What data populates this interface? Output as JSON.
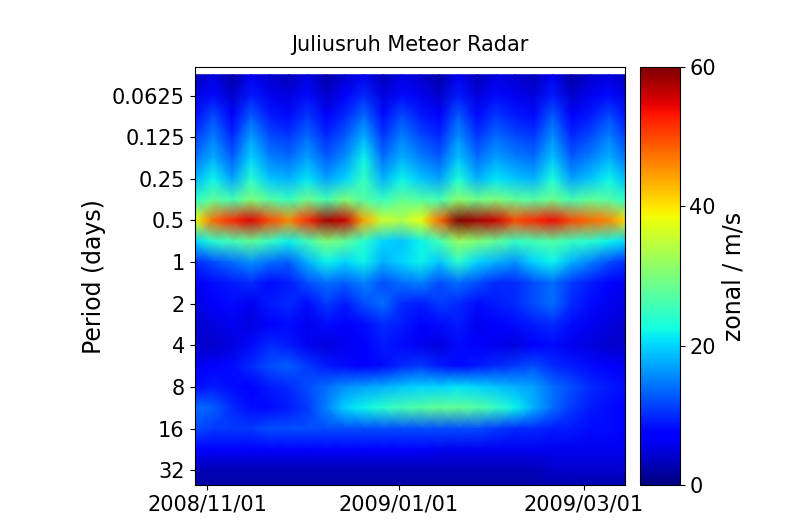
{
  "chart_data": {
    "type": "heatmap",
    "title": "Juliusruh Meteor Radar",
    "y_label": "Period (days)",
    "x": [
      "2008-10-28",
      "2008-11-03",
      "2008-11-09",
      "2008-11-15",
      "2008-11-21",
      "2008-11-27",
      "2008-12-03",
      "2008-12-09",
      "2008-12-15",
      "2008-12-21",
      "2008-12-27",
      "2009-01-02",
      "2009-01-08",
      "2009-01-14",
      "2009-01-20",
      "2009-01-26",
      "2009-02-01",
      "2009-02-07",
      "2009-02-13",
      "2009-02-19",
      "2009-02-25",
      "2009-03-03",
      "2009-03-09",
      "2009-03-15"
    ],
    "periods": [
      0.0442,
      0.0625,
      0.0884,
      0.125,
      0.177,
      0.25,
      0.354,
      0.5,
      0.707,
      1,
      1.41,
      2,
      2.83,
      4,
      5.66,
      8,
      11.3,
      16,
      22.6,
      32,
      45.3
    ],
    "cells": [
      [
        3,
        5,
        2,
        6,
        4,
        3,
        5,
        2,
        4,
        6,
        3,
        5,
        4,
        2,
        6,
        3,
        5,
        4,
        3,
        6,
        2,
        4,
        5,
        3
      ],
      [
        5,
        8,
        4,
        9,
        6,
        5,
        8,
        4,
        7,
        10,
        5,
        8,
        6,
        4,
        9,
        5,
        8,
        6,
        5,
        9,
        4,
        6,
        8,
        5
      ],
      [
        8,
        12,
        7,
        13,
        9,
        8,
        11,
        7,
        10,
        14,
        8,
        12,
        9,
        7,
        13,
        8,
        11,
        9,
        8,
        13,
        7,
        9,
        12,
        8
      ],
      [
        11,
        15,
        10,
        17,
        12,
        11,
        14,
        10,
        13,
        18,
        11,
        15,
        12,
        10,
        16,
        11,
        14,
        12,
        11,
        16,
        10,
        12,
        15,
        11
      ],
      [
        14,
        18,
        13,
        20,
        15,
        14,
        17,
        13,
        16,
        22,
        14,
        18,
        15,
        13,
        19,
        14,
        17,
        15,
        14,
        19,
        13,
        15,
        18,
        14
      ],
      [
        18,
        22,
        17,
        24,
        19,
        18,
        21,
        17,
        20,
        25,
        18,
        22,
        19,
        17,
        23,
        18,
        21,
        19,
        18,
        23,
        17,
        19,
        22,
        18
      ],
      [
        24,
        28,
        26,
        30,
        27,
        25,
        29,
        26,
        30,
        27,
        25,
        28,
        27,
        26,
        31,
        29,
        30,
        28,
        27,
        29,
        26,
        28,
        27,
        24
      ],
      [
        38,
        48,
        52,
        55,
        50,
        46,
        52,
        58,
        56,
        44,
        36,
        34,
        38,
        48,
        60,
        58,
        56,
        50,
        52,
        54,
        50,
        48,
        46,
        40
      ],
      [
        20,
        24,
        26,
        28,
        25,
        22,
        26,
        30,
        28,
        24,
        20,
        19,
        22,
        26,
        32,
        30,
        28,
        25,
        26,
        27,
        25,
        24,
        22,
        20
      ],
      [
        10,
        12,
        14,
        16,
        14,
        13,
        18,
        22,
        20,
        22,
        18,
        20,
        22,
        19,
        24,
        20,
        18,
        16,
        20,
        22,
        18,
        15,
        12,
        10
      ],
      [
        6,
        8,
        9,
        10,
        8,
        9,
        12,
        14,
        13,
        15,
        12,
        14,
        15,
        12,
        14,
        12,
        10,
        10,
        12,
        14,
        11,
        9,
        7,
        6
      ],
      [
        5,
        7,
        8,
        6,
        9,
        10,
        8,
        11,
        9,
        12,
        14,
        10,
        9,
        11,
        10,
        8,
        9,
        10,
        12,
        14,
        10,
        8,
        6,
        5
      ],
      [
        4,
        5,
        6,
        5,
        7,
        8,
        6,
        8,
        7,
        8,
        10,
        9,
        7,
        8,
        9,
        6,
        7,
        8,
        9,
        10,
        8,
        6,
        5,
        4
      ],
      [
        4,
        4,
        5,
        8,
        10,
        9,
        6,
        5,
        6,
        7,
        9,
        8,
        6,
        5,
        8,
        7,
        6,
        5,
        7,
        8,
        6,
        5,
        4,
        4
      ],
      [
        6,
        7,
        8,
        10,
        12,
        13,
        11,
        9,
        8,
        7,
        8,
        10,
        11,
        9,
        8,
        9,
        10,
        11,
        12,
        10,
        9,
        8,
        7,
        6
      ],
      [
        8,
        9,
        8,
        7,
        9,
        10,
        12,
        14,
        16,
        17,
        18,
        19,
        20,
        20,
        21,
        20,
        19,
        18,
        17,
        14,
        12,
        10,
        9,
        8
      ],
      [
        14,
        13,
        10,
        8,
        8,
        9,
        11,
        15,
        20,
        22,
        24,
        26,
        27,
        28,
        28,
        27,
        25,
        22,
        18,
        14,
        11,
        9,
        8,
        7
      ],
      [
        12,
        11,
        11,
        11,
        12,
        12,
        12,
        12,
        12,
        12,
        12,
        12,
        12,
        12,
        12,
        12,
        11,
        10,
        10,
        9,
        9,
        8,
        8,
        7
      ],
      [
        7,
        7,
        7,
        7,
        7,
        7,
        7,
        7,
        7,
        7,
        7,
        7,
        7,
        6,
        6,
        6,
        6,
        6,
        6,
        6,
        6,
        6,
        6,
        6
      ],
      [
        3,
        3,
        3,
        3,
        3,
        3,
        3,
        3,
        3,
        3,
        3,
        3,
        3,
        3,
        3,
        3,
        3,
        3,
        3,
        4,
        4,
        4,
        4,
        4
      ],
      [
        2,
        2,
        2,
        2,
        2,
        2,
        2,
        2,
        2,
        2,
        2,
        2,
        2,
        2,
        2,
        2,
        2,
        2,
        2,
        2,
        2,
        2,
        2,
        2
      ]
    ],
    "log": "y",
    "color": "jet",
    "xlim": [
      "2008-10-28",
      "2009-03-14"
    ],
    "xticks": [
      {
        "value": "2008-11-01",
        "label": "2008/11/01"
      },
      {
        "value": "2009-01-01",
        "label": "2009/01/01"
      },
      {
        "value": "2009-03-01",
        "label": "2009/03/01"
      }
    ],
    "ylim": [
      41,
      0.039
    ],
    "yticks": [
      0.0625,
      0.125,
      0.25,
      0.5,
      1,
      2,
      4,
      8,
      16,
      32
    ],
    "colorbar_label": "zonal / m/s",
    "colorbar_lim": [
      0,
      60
    ],
    "colorbar_ticks": [
      0,
      20,
      40,
      60
    ]
  }
}
